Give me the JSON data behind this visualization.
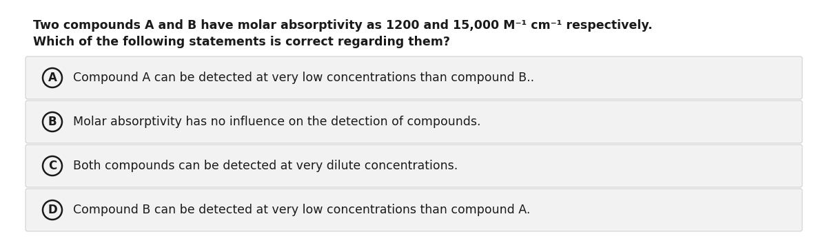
{
  "title_line1": "Two compounds A and B have molar absorptivity as 1200 and 15,000 M⁻¹ cm⁻¹ respectively.",
  "title_line2": "Which of the following statements is correct regarding them?",
  "options": [
    {
      "label": "A",
      "text": "Compound A can be detected at very low concentrations than compound B.."
    },
    {
      "label": "B",
      "text": "Molar absorptivity has no influence on the detection of compounds."
    },
    {
      "label": "C",
      "text": "Both compounds can be detected at very dilute concentrations."
    },
    {
      "label": "D",
      "text": "Compound B can be detected at very low concentrations than compound A."
    }
  ],
  "bg_color": "#ffffff",
  "option_bg_color": "#f2f2f2",
  "option_border_color": "#cccccc",
  "text_color": "#1a1a1a",
  "circle_color": "#1a1a1a",
  "title_fontsize": 12.5,
  "option_fontsize": 12.5,
  "label_fontsize": 12.0
}
